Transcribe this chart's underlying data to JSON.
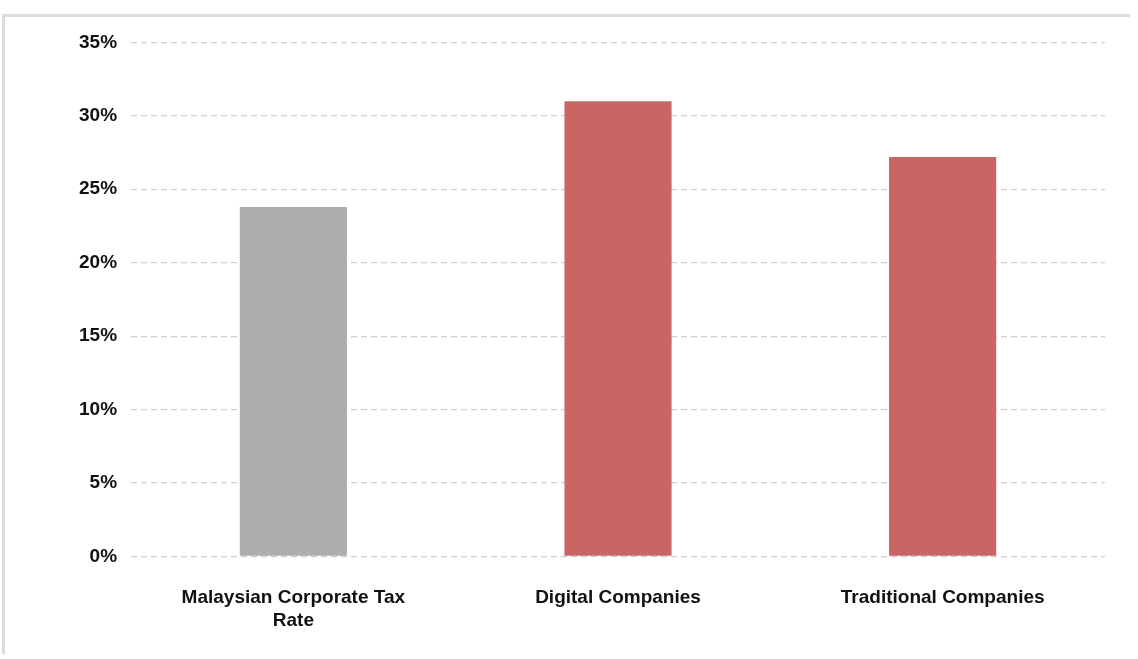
{
  "chart_data": {
    "type": "bar",
    "categories": [
      "Malaysian Corporate Tax Rate",
      "Digital Companies",
      "Traditional Companies"
    ],
    "values": [
      23.8,
      31,
      27.2
    ],
    "colors": [
      "#acadaf",
      "#c96663",
      "#c96663"
    ],
    "ylim": [
      0,
      35
    ],
    "yticks": [
      {
        "value": 0,
        "label": "0%"
      },
      {
        "value": 5,
        "label": "5%"
      },
      {
        "value": 10,
        "label": "10%"
      },
      {
        "value": 15,
        "label": "15%"
      },
      {
        "value": 20,
        "label": "20%"
      },
      {
        "value": 25,
        "label": "25%"
      },
      {
        "value": 30,
        "label": "30%"
      },
      {
        "value": 35,
        "label": "35%"
      }
    ],
    "grid": "y",
    "legend": false
  }
}
